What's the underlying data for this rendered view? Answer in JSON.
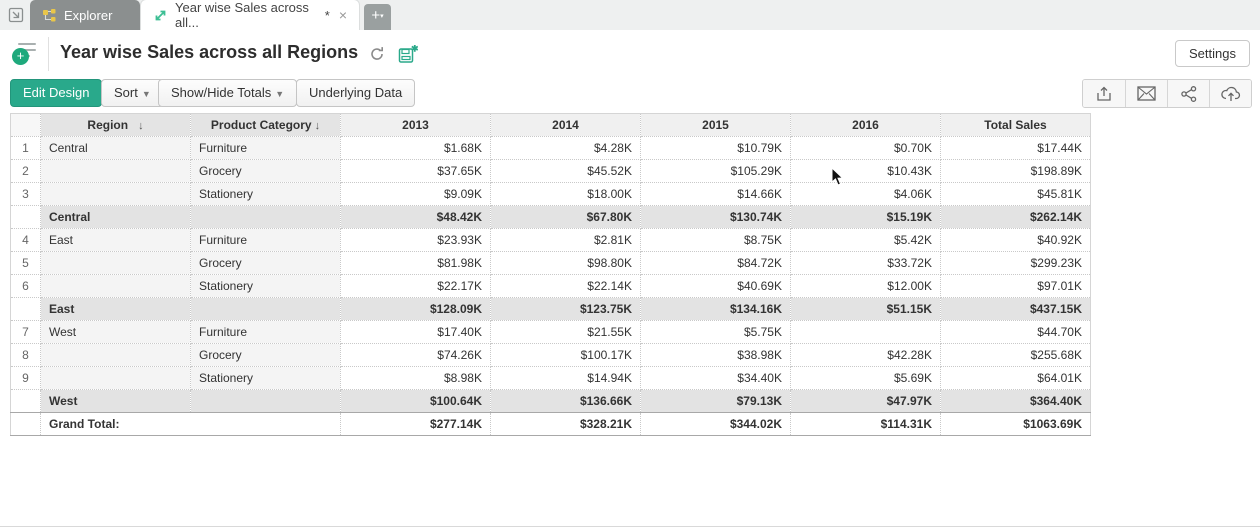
{
  "tabs": {
    "explorer": {
      "label": "Explorer"
    },
    "active": {
      "label": "Year wise Sales across all...",
      "dirty_marker": "*",
      "close_glyph": "×"
    },
    "new_tab_glyph": "+"
  },
  "header": {
    "title": "Year wise Sales across all Regions",
    "settings_label": "Settings"
  },
  "toolbar": {
    "edit_design_label": "Edit Design",
    "sort_label": "Sort",
    "show_hide_totals_label": "Show/Hide Totals",
    "underlying_data_label": "Underlying Data",
    "caret_glyph": "▼",
    "action_icons": [
      "export-icon",
      "email-icon",
      "share-icon",
      "publish-icon"
    ]
  },
  "icons": {
    "sort_desc": "↓",
    "menu_plus": "+",
    "save_star": "✱"
  },
  "colors": {
    "accent_teal": "#29a98b",
    "tab_gray": "#8b8f8f",
    "subtotal_bg": "#e3e3e3",
    "header_dim_bg": "#e4e4e4"
  },
  "table": {
    "columns": [
      "Region",
      "Product Category",
      "2013",
      "2014",
      "2015",
      "2016",
      "Total Sales"
    ],
    "sorted_columns": [
      "Region",
      "Product Category"
    ],
    "rows": [
      {
        "type": "data",
        "num": "1",
        "region": "Central",
        "category": "Furniture",
        "values": [
          "$1.68K",
          "$4.28K",
          "$10.79K",
          "$0.70K",
          "$17.44K"
        ]
      },
      {
        "type": "data",
        "num": "2",
        "region": "",
        "category": "Grocery",
        "values": [
          "$37.65K",
          "$45.52K",
          "$105.29K",
          "$10.43K",
          "$198.89K"
        ]
      },
      {
        "type": "data",
        "num": "3",
        "region": "",
        "category": "Stationery",
        "values": [
          "$9.09K",
          "$18.00K",
          "$14.66K",
          "$4.06K",
          "$45.81K"
        ]
      },
      {
        "type": "subtotal",
        "num": "",
        "region": "Central",
        "category": "",
        "values": [
          "$48.42K",
          "$67.80K",
          "$130.74K",
          "$15.19K",
          "$262.14K"
        ]
      },
      {
        "type": "data",
        "num": "4",
        "region": "East",
        "category": "Furniture",
        "values": [
          "$23.93K",
          "$2.81K",
          "$8.75K",
          "$5.42K",
          "$40.92K"
        ]
      },
      {
        "type": "data",
        "num": "5",
        "region": "",
        "category": "Grocery",
        "values": [
          "$81.98K",
          "$98.80K",
          "$84.72K",
          "$33.72K",
          "$299.23K"
        ]
      },
      {
        "type": "data",
        "num": "6",
        "region": "",
        "category": "Stationery",
        "values": [
          "$22.17K",
          "$22.14K",
          "$40.69K",
          "$12.00K",
          "$97.01K"
        ]
      },
      {
        "type": "subtotal",
        "num": "",
        "region": "East",
        "category": "",
        "values": [
          "$128.09K",
          "$123.75K",
          "$134.16K",
          "$51.15K",
          "$437.15K"
        ]
      },
      {
        "type": "data",
        "num": "7",
        "region": "West",
        "category": "Furniture",
        "values": [
          "$17.40K",
          "$21.55K",
          "$5.75K",
          "",
          "$44.70K"
        ]
      },
      {
        "type": "data",
        "num": "8",
        "region": "",
        "category": "Grocery",
        "values": [
          "$74.26K",
          "$100.17K",
          "$38.98K",
          "$42.28K",
          "$255.68K"
        ]
      },
      {
        "type": "data",
        "num": "9",
        "region": "",
        "category": "Stationery",
        "values": [
          "$8.98K",
          "$14.94K",
          "$34.40K",
          "$5.69K",
          "$64.01K"
        ]
      },
      {
        "type": "subtotal",
        "num": "",
        "region": "West",
        "category": "",
        "values": [
          "$100.64K",
          "$136.66K",
          "$79.13K",
          "$47.97K",
          "$364.40K"
        ]
      },
      {
        "type": "grandtotal",
        "num": "",
        "label": "Grand Total:",
        "values": [
          "$277.14K",
          "$328.21K",
          "$344.02K",
          "$114.31K",
          "$1063.69K"
        ]
      }
    ]
  }
}
